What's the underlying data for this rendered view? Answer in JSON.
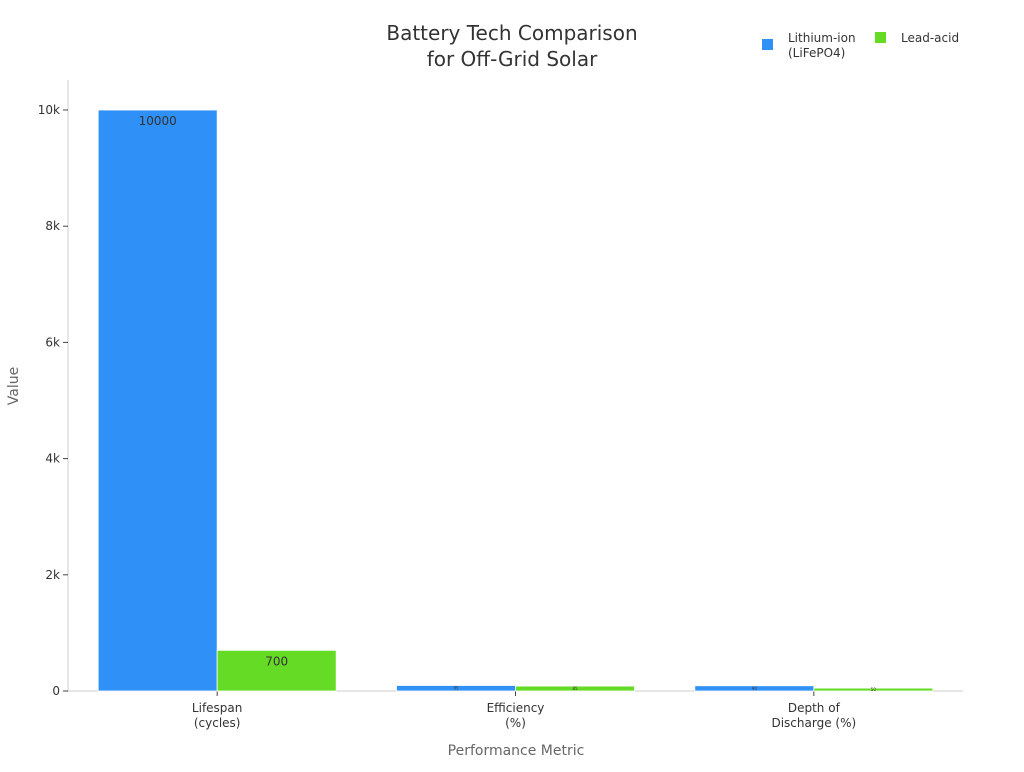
{
  "chart_data": {
    "type": "bar",
    "title": "Battery Tech Comparison\nfor Off-Grid Solar",
    "xlabel": "Performance Metric",
    "ylabel": "Value",
    "categories": [
      "Lifespan\n(cycles)",
      "Efficiency\n(%)",
      "Depth of\nDischarge (%)"
    ],
    "series": [
      {
        "name": "Lithium-ion\n(LiFePO4)",
        "values": [
          10000,
          95,
          90
        ],
        "color": "#2f91f7"
      },
      {
        "name": "Lead-acid",
        "values": [
          700,
          85,
          50
        ],
        "color": "#65db25"
      }
    ],
    "ylim": [
      0,
      10500
    ],
    "yticks": [
      0,
      2000,
      4000,
      6000,
      8000,
      10000
    ],
    "ytick_labels": [
      "0",
      "2k",
      "4k",
      "6k",
      "8k",
      "10k"
    ],
    "grid": false,
    "legend": "top-right"
  }
}
